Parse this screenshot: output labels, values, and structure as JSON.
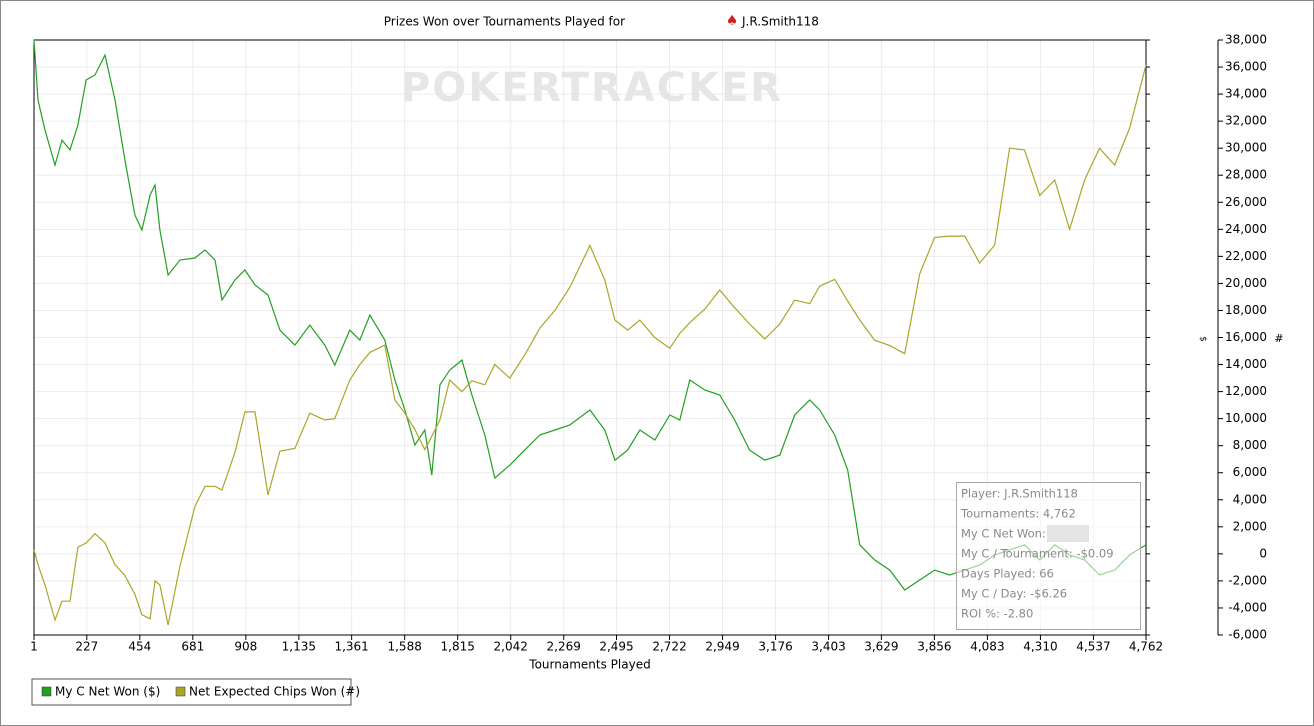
{
  "chart_data": {
    "type": "line",
    "title": "Prizes Won over Tournaments Played for",
    "player": "J.R.Smith118",
    "watermark": "POKERTRACKER",
    "x_label": "Tournaments Played",
    "y_label": "$",
    "y2_label": "#",
    "x": [
      1,
      18,
      48,
      91,
      121,
      155,
      189,
      224,
      262,
      305,
      348,
      390,
      433,
      463,
      498,
      519,
      540,
      575,
      626,
      690,
      733,
      776,
      806,
      861,
      904,
      947,
      1003,
      1054,
      1118,
      1182,
      1246,
      1289,
      1353,
      1396,
      1439,
      1503,
      1546,
      1589,
      1632,
      1674,
      1704,
      1739,
      1781,
      1833,
      1876,
      1931,
      1974,
      2038,
      2102,
      2167,
      2231,
      2295,
      2381,
      2445,
      2488,
      2543,
      2595,
      2659,
      2723,
      2766,
      2809,
      2873,
      2937,
      3001,
      3065,
      3130,
      3194,
      3258,
      3322,
      3365,
      3429,
      3485,
      3536,
      3600,
      3665,
      3729,
      3793,
      3857,
      3921,
      3986,
      4050,
      4114,
      4178,
      4242,
      4307,
      4371,
      4435,
      4499,
      4563,
      4628,
      4692,
      4762
    ],
    "series": [
      {
        "name": "My C Net Won ($)",
        "color": "#22a022",
        "values": [
          38000,
          33560,
          31340,
          28750,
          30600,
          29870,
          31710,
          35040,
          35410,
          36890,
          33560,
          29130,
          25060,
          23950,
          26540,
          27280,
          23950,
          20620,
          21730,
          21880,
          22470,
          21730,
          18770,
          20250,
          20990,
          19880,
          19140,
          16550,
          15440,
          16920,
          15440,
          13960,
          16550,
          15810,
          17660,
          15810,
          12860,
          10640,
          8050,
          9160,
          5830,
          12490,
          13590,
          14330,
          11750,
          8790,
          5610,
          6560,
          7670,
          8790,
          9160,
          9530,
          10640,
          9160,
          6930,
          7670,
          9160,
          8420,
          10270,
          9900,
          12860,
          12120,
          11750,
          9900,
          7670,
          6930,
          7300,
          10270,
          11380,
          10640,
          8790,
          6190,
          670,
          -450,
          -1200,
          -2670,
          -1930,
          -1200,
          -1560,
          -1200,
          -820,
          -80,
          290,
          670,
          -450,
          670,
          -80,
          -450,
          -1560,
          -1200,
          -80,
          670
        ]
      },
      {
        "name": "Net Expected Chips Won (#)",
        "color": "#aaa62a",
        "values": [
          290,
          -800,
          -2300,
          -4890,
          -3500,
          -3500,
          500,
          800,
          1500,
          800,
          -800,
          -1600,
          -3000,
          -4500,
          -4800,
          -2000,
          -2300,
          -5260,
          -900,
          3500,
          5000,
          5000,
          4720,
          7500,
          10500,
          10500,
          4350,
          7600,
          7800,
          10400,
          9900,
          10000,
          12860,
          14000,
          14900,
          15440,
          11380,
          10400,
          9200,
          7700,
          8700,
          9900,
          12860,
          12000,
          12800,
          12500,
          14000,
          13000,
          14700,
          16700,
          18000,
          19700,
          22800,
          20250,
          17290,
          16550,
          17290,
          16000,
          15200,
          16300,
          17100,
          18100,
          19510,
          18200,
          17000,
          15900,
          17000,
          18770,
          18500,
          19800,
          20300,
          18700,
          17300,
          15800,
          15400,
          14800,
          20700,
          23400,
          23500,
          23500,
          21500,
          22840,
          30000,
          29870,
          26500,
          27650,
          24000,
          27650,
          30000,
          28750,
          31500,
          36150
        ]
      }
    ],
    "xlim": [
      1,
      4762
    ],
    "xticks": [
      1,
      {
        "value": 227,
        "label": "227"
      },
      454,
      681,
      908,
      {
        "value": 1135,
        "label": "1,135"
      },
      {
        "value": 1361,
        "label": "1,361"
      },
      {
        "value": 1588,
        "label": "1,588"
      },
      {
        "value": 1815,
        "label": "1,815"
      },
      {
        "value": 2042,
        "label": "2,042"
      },
      {
        "value": 2269,
        "label": "2,269"
      },
      {
        "value": 2495,
        "label": "2,495"
      },
      {
        "value": 2722,
        "label": "2,722"
      },
      {
        "value": 2949,
        "label": "2,949"
      },
      {
        "value": 3176,
        "label": "3,176"
      },
      {
        "value": 3403,
        "label": "3,403"
      },
      {
        "value": 3629,
        "label": "3,629"
      },
      {
        "value": 3856,
        "label": "3,856"
      },
      {
        "value": 4083,
        "label": "4,083"
      },
      {
        "value": 4310,
        "label": "4,310"
      },
      {
        "value": 4537,
        "label": "4,537"
      },
      {
        "value": 4762,
        "label": "4,762"
      }
    ],
    "ylim": [
      -6000,
      38000
    ],
    "yticks": [
      {
        "value": -6000,
        "label": "-6,000"
      },
      {
        "value": -4000,
        "label": "-4,000"
      },
      {
        "value": -2000,
        "label": "-2,000"
      },
      0,
      {
        "value": 2000,
        "label": "2,000"
      },
      {
        "value": 4000,
        "label": "4,000"
      },
      {
        "value": 6000,
        "label": "6,000"
      },
      {
        "value": 8000,
        "label": "8,000"
      },
      {
        "value": 10000,
        "label": "10,000"
      },
      {
        "value": 12000,
        "label": "12,000"
      },
      {
        "value": 14000,
        "label": "14,000"
      },
      {
        "value": 16000,
        "label": "16,000"
      },
      {
        "value": 18000,
        "label": "18,000"
      },
      {
        "value": 20000,
        "label": "20,000"
      },
      {
        "value": 22000,
        "label": "22,000"
      },
      {
        "value": 24000,
        "label": "24,000"
      },
      {
        "value": 26000,
        "label": "26,000"
      },
      {
        "value": 28000,
        "label": "28,000"
      },
      {
        "value": 30000,
        "label": "30,000"
      },
      {
        "value": 32000,
        "label": "32,000"
      },
      {
        "value": 34000,
        "label": "34,000"
      },
      {
        "value": 36000,
        "label": "36,000"
      },
      {
        "value": 38000,
        "label": "38,000"
      }
    ],
    "grid": true,
    "legend": "bottom-left",
    "tooltip": [
      "Player: J.R.Smith118",
      "Tournaments: 4,762",
      "My C Net Won:",
      "My C / Tournament: -$0.09",
      "Days Played: 66",
      "My C / Day: -$6.26",
      "ROI %: -2.80"
    ]
  }
}
